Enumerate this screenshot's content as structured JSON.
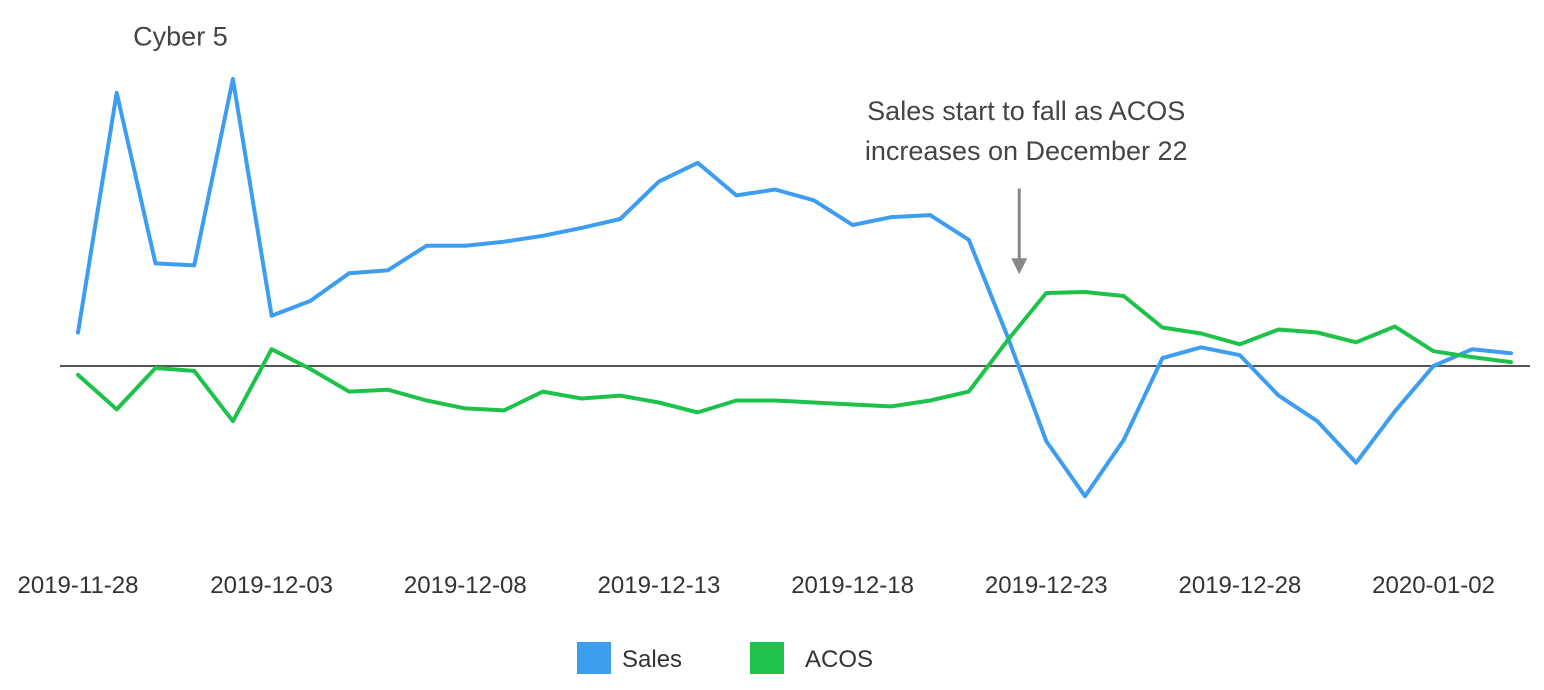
{
  "chart_data": {
    "type": "line",
    "title": "",
    "xlabel": "",
    "ylabel": "",
    "x": [
      "2019-11-28",
      "2019-11-29",
      "2019-11-30",
      "2019-12-01",
      "2019-12-02",
      "2019-12-03",
      "2019-12-04",
      "2019-12-05",
      "2019-12-06",
      "2019-12-07",
      "2019-12-08",
      "2019-12-09",
      "2019-12-10",
      "2019-12-11",
      "2019-12-12",
      "2019-12-13",
      "2019-12-14",
      "2019-12-15",
      "2019-12-16",
      "2019-12-17",
      "2019-12-18",
      "2019-12-19",
      "2019-12-20",
      "2019-12-21",
      "2019-12-22",
      "2019-12-23",
      "2019-12-24",
      "2019-12-25",
      "2019-12-26",
      "2019-12-27",
      "2019-12-28",
      "2019-12-29",
      "2019-12-30",
      "2019-12-31",
      "2020-01-01",
      "2020-01-02",
      "2020-01-03",
      "2020-01-04"
    ],
    "x_tick_labels": [
      "2019-11-28",
      "2019-12-03",
      "2019-12-08",
      "2019-12-13",
      "2019-12-18",
      "2019-12-23",
      "2019-12-28",
      "2020-01-02"
    ],
    "series": [
      {
        "name": "Sales",
        "color": "#3d9df0",
        "values": [
          34,
          277,
          104,
          102,
          291,
          51,
          66,
          94,
          97,
          122,
          122,
          126,
          132,
          140,
          149,
          187,
          206,
          173,
          179,
          168,
          143,
          151,
          153,
          128,
          30,
          -76,
          -132,
          -75,
          8,
          19,
          11,
          -30,
          -56,
          -98,
          -46,
          0,
          17,
          13
        ]
      },
      {
        "name": "ACOS",
        "color": "#1ec24b",
        "values": [
          -9,
          -44,
          -2,
          -5,
          -56,
          17,
          -3,
          -26,
          -24,
          -35,
          -43,
          -45,
          -26,
          -33,
          -30,
          -37,
          -47,
          -35,
          -35,
          -37,
          -39,
          -41,
          -35,
          -26,
          26,
          74,
          75,
          71,
          39,
          33,
          22,
          37,
          34,
          24,
          40,
          15,
          9,
          4
        ]
      }
    ],
    "zero_line": true,
    "y_axis_visible": false,
    "grid": false,
    "legend": {
      "position": "bottom-center"
    },
    "annotations": [
      {
        "text": "Cyber 5",
        "x": "2019-11-30",
        "y": 325
      },
      {
        "text_lines": [
          "Sales start to fall as ACOS",
          "increases on December 22"
        ],
        "x": "2019-12-23",
        "arrow_from_y": 180,
        "arrow_to_y": 95
      }
    ]
  }
}
